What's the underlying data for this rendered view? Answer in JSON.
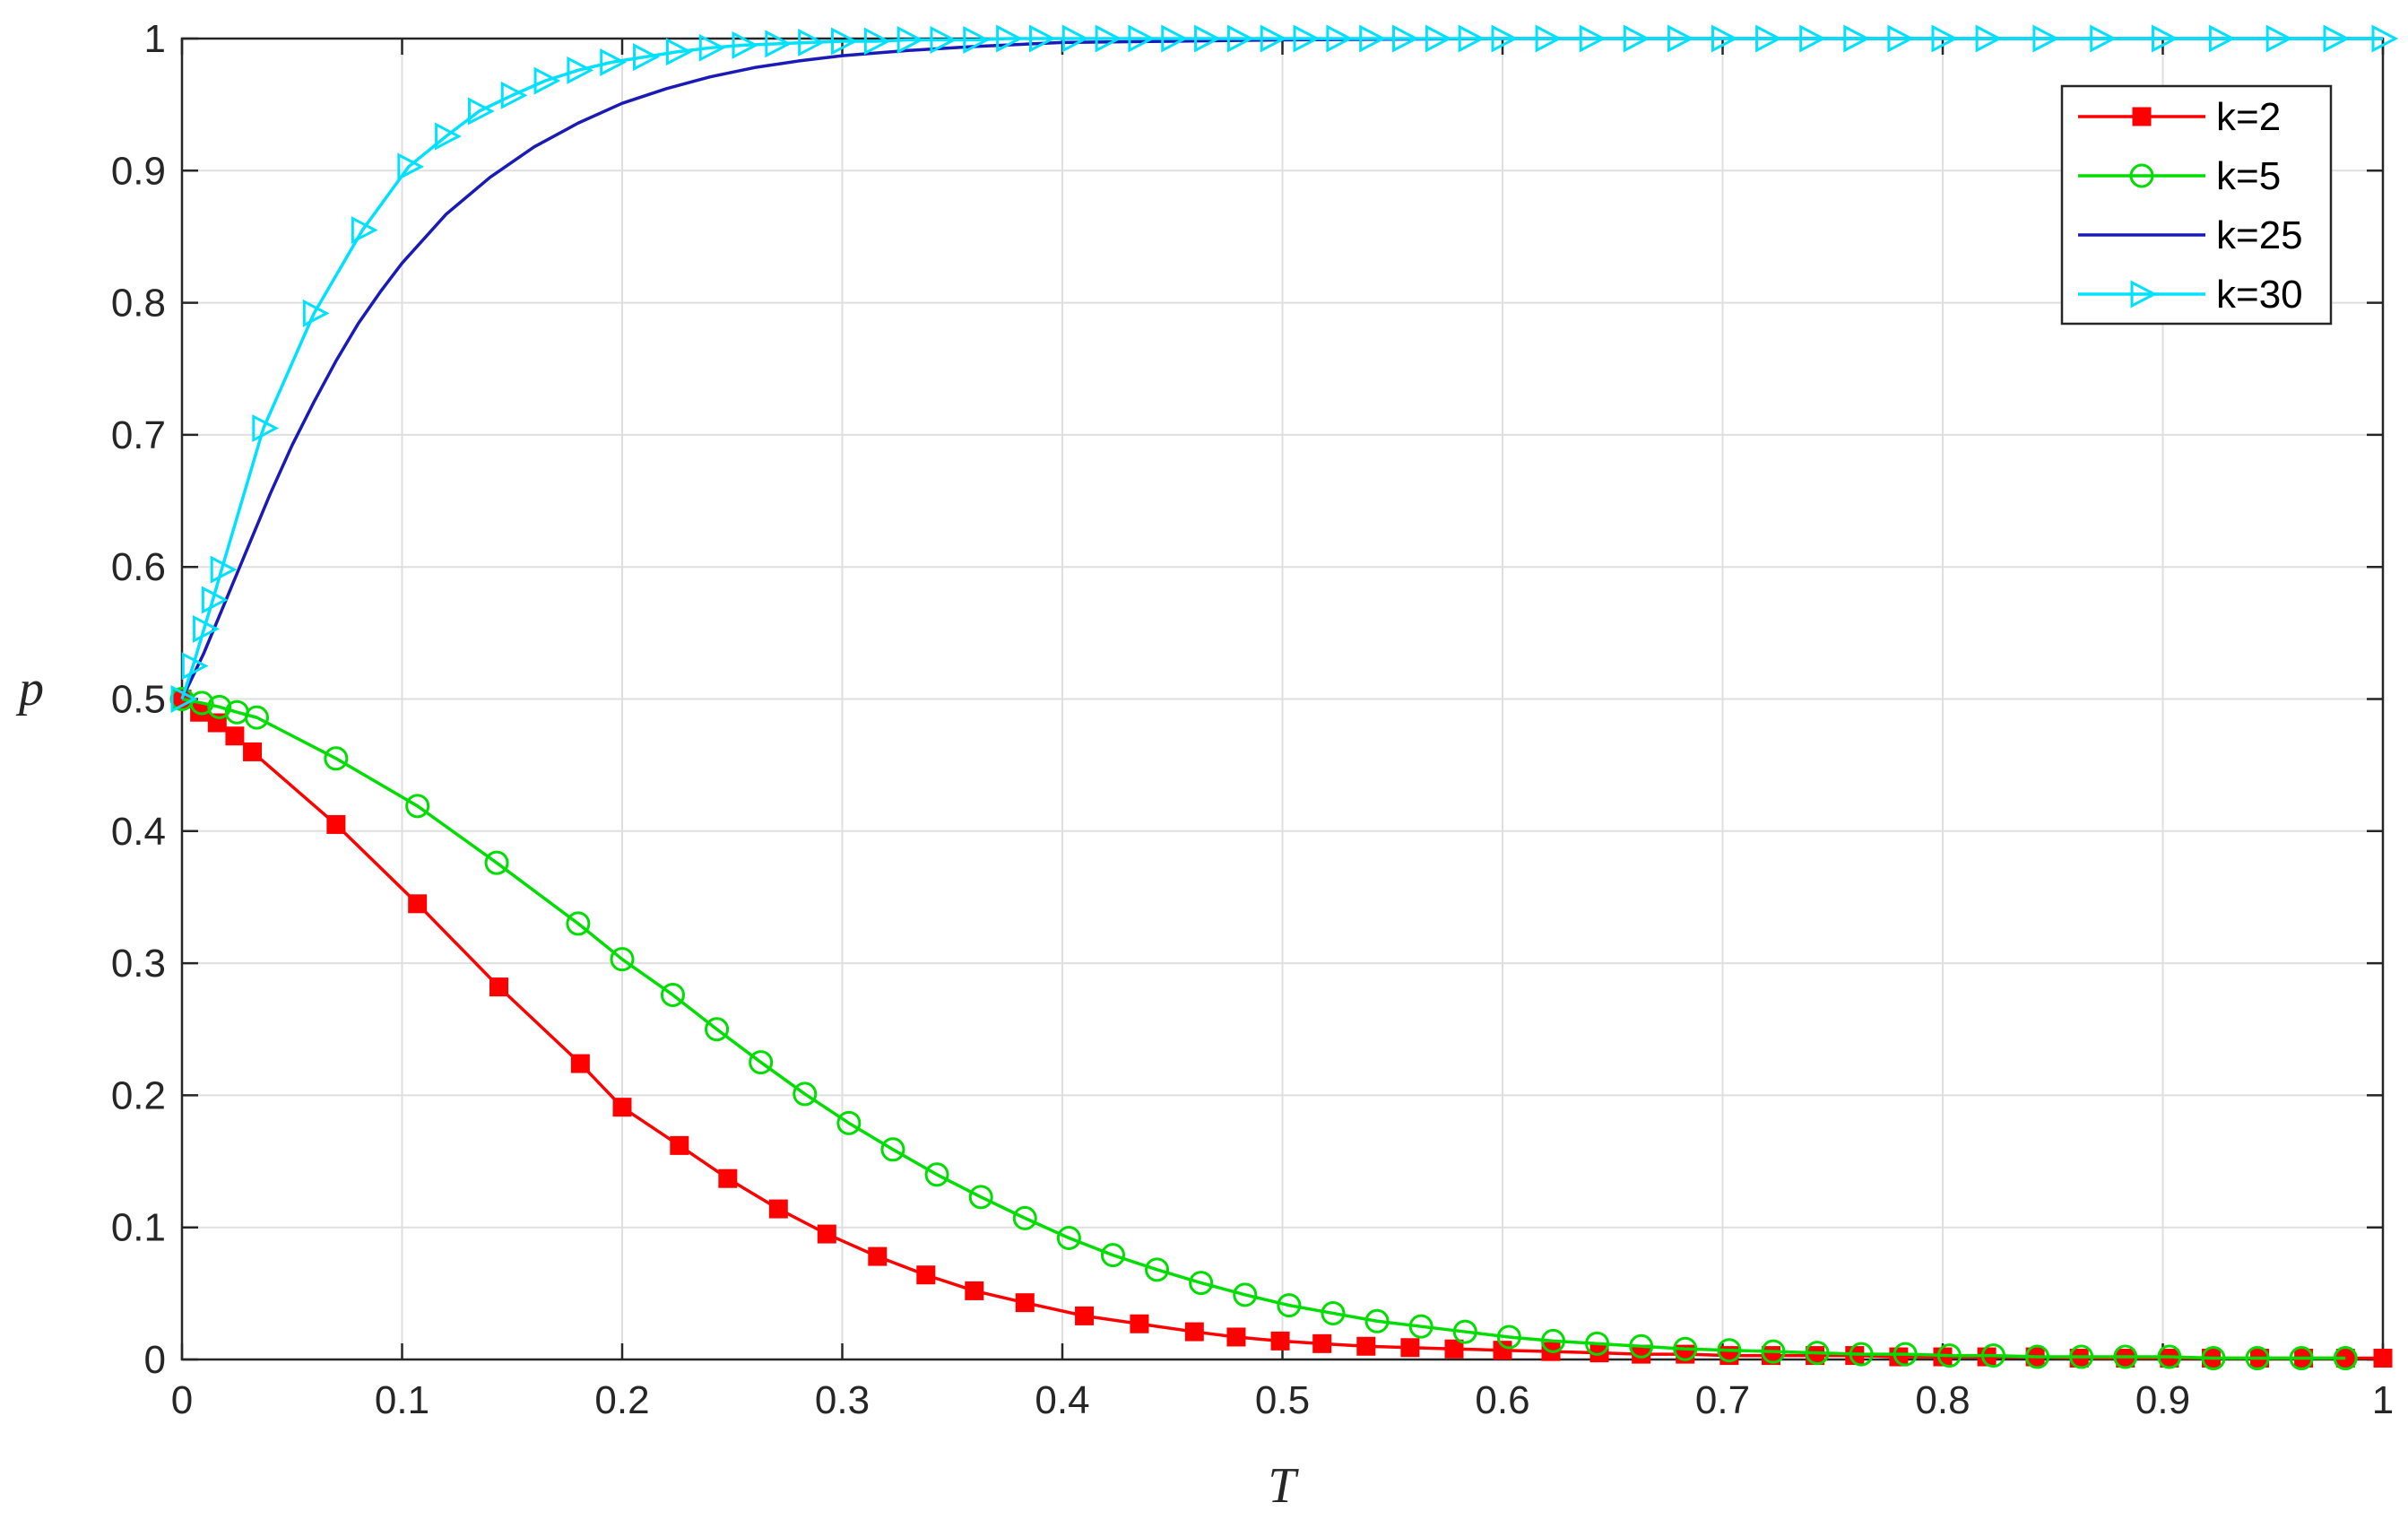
{
  "chart_data": {
    "type": "line",
    "title": "",
    "xlabel": "T",
    "ylabel": "p",
    "xlim": [
      0,
      1
    ],
    "ylim": [
      0,
      1
    ],
    "xticks": [
      "0",
      "0.1",
      "0.2",
      "0.3",
      "0.4",
      "0.5",
      "0.6",
      "0.7",
      "0.8",
      "0.9",
      "1"
    ],
    "yticks": [
      "0",
      "0.1",
      "0.2",
      "0.3",
      "0.4",
      "0.5",
      "0.6",
      "0.7",
      "0.8",
      "0.9",
      "1"
    ],
    "grid": true,
    "legend_position": "top-right",
    "series": [
      {
        "name": "k=2",
        "color": "#ff0000",
        "marker": "filled-square",
        "x": [
          0,
          0.008,
          0.016,
          0.024,
          0.032,
          0.07,
          0.107,
          0.144,
          0.181,
          0.2,
          0.226,
          0.248,
          0.271,
          0.293,
          0.316,
          0.338,
          0.36,
          0.383,
          0.41,
          0.435,
          0.46,
          0.479,
          0.499,
          0.518,
          0.538,
          0.558,
          0.578,
          0.6,
          0.622,
          0.644,
          0.663,
          0.683,
          0.703,
          0.722,
          0.742,
          0.76,
          0.78,
          0.8,
          0.82,
          0.842,
          0.862,
          0.883,
          0.903,
          0.922,
          0.944,
          0.964,
          0.983,
          1
        ],
        "y": [
          0.5,
          0.49,
          0.482,
          0.472,
          0.46,
          0.405,
          0.345,
          0.282,
          0.224,
          0.191,
          0.162,
          0.137,
          0.114,
          0.095,
          0.078,
          0.064,
          0.052,
          0.043,
          0.033,
          0.027,
          0.021,
          0.017,
          0.014,
          0.012,
          0.01,
          0.009,
          0.008,
          0.007,
          0.006,
          0.005,
          0.004,
          0.004,
          0.003,
          0.003,
          0.003,
          0.003,
          0.002,
          0.002,
          0.002,
          0.002,
          0.001,
          0.001,
          0.001,
          0.001,
          0.001,
          0.001,
          0.001,
          0.001
        ]
      },
      {
        "name": "k=5",
        "color": "#00dd00",
        "marker": "open-circle",
        "x": [
          0,
          0.009,
          0.017,
          0.025,
          0.034,
          0.07,
          0.107,
          0.143,
          0.18,
          0.2,
          0.223,
          0.243,
          0.263,
          0.283,
          0.303,
          0.323,
          0.343,
          0.363,
          0.383,
          0.403,
          0.423,
          0.443,
          0.463,
          0.483,
          0.503,
          0.523,
          0.543,
          0.563,
          0.583,
          0.603,
          0.623,
          0.643,
          0.663,
          0.683,
          0.703,
          0.723,
          0.743,
          0.763,
          0.783,
          0.803,
          0.823,
          0.843,
          0.863,
          0.883,
          0.903,
          0.923,
          0.943,
          0.963,
          0.983
        ],
        "y": [
          0.5,
          0.497,
          0.494,
          0.49,
          0.486,
          0.455,
          0.419,
          0.376,
          0.33,
          0.303,
          0.276,
          0.25,
          0.225,
          0.201,
          0.179,
          0.159,
          0.14,
          0.123,
          0.107,
          0.092,
          0.079,
          0.068,
          0.058,
          0.049,
          0.041,
          0.035,
          0.029,
          0.025,
          0.021,
          0.017,
          0.014,
          0.012,
          0.01,
          0.008,
          0.007,
          0.006,
          0.005,
          0.004,
          0.004,
          0.003,
          0.003,
          0.002,
          0.002,
          0.002,
          0.002,
          0.001,
          0.001,
          0.001,
          0.001
        ]
      },
      {
        "name": "k=25",
        "color": "#1a1ab8",
        "marker": "none",
        "x": [
          0,
          0.01,
          0.02,
          0.03,
          0.04,
          0.05,
          0.06,
          0.07,
          0.08,
          0.09,
          0.1,
          0.12,
          0.14,
          0.16,
          0.18,
          0.2,
          0.22,
          0.24,
          0.26,
          0.28,
          0.3,
          0.33,
          0.36,
          0.4,
          0.45,
          0.5,
          0.6,
          0.7,
          0.8,
          0.9,
          1
        ],
        "y": [
          0.5,
          0.535,
          0.575,
          0.615,
          0.655,
          0.692,
          0.725,
          0.756,
          0.784,
          0.808,
          0.83,
          0.867,
          0.895,
          0.918,
          0.936,
          0.951,
          0.962,
          0.971,
          0.978,
          0.983,
          0.987,
          0.991,
          0.994,
          0.997,
          0.998,
          0.999,
          1,
          1,
          1,
          1,
          1
        ]
      },
      {
        "name": "k=30",
        "color": "#00e0ff",
        "marker": "open-triangle-right",
        "x": [
          0,
          0.005,
          0.01,
          0.014,
          0.018,
          0.037,
          0.06,
          0.082,
          0.103,
          0.12,
          0.135,
          0.15,
          0.165,
          0.18,
          0.195,
          0.21,
          0.225,
          0.24,
          0.255,
          0.27,
          0.285,
          0.3,
          0.315,
          0.33,
          0.345,
          0.36,
          0.375,
          0.39,
          0.405,
          0.42,
          0.435,
          0.45,
          0.465,
          0.48,
          0.495,
          0.51,
          0.525,
          0.54,
          0.555,
          0.57,
          0.585,
          0.6,
          0.62,
          0.64,
          0.66,
          0.68,
          0.7,
          0.72,
          0.74,
          0.76,
          0.78,
          0.8,
          0.82,
          0.846,
          0.872,
          0.9,
          0.926,
          0.952,
          0.978,
          1
        ],
        "y": [
          0.5,
          0.525,
          0.553,
          0.575,
          0.598,
          0.705,
          0.792,
          0.855,
          0.903,
          0.926,
          0.945,
          0.957,
          0.968,
          0.976,
          0.982,
          0.986,
          0.99,
          0.993,
          0.995,
          0.996,
          0.997,
          0.998,
          0.998,
          0.999,
          0.999,
          0.999,
          1,
          1,
          1,
          1,
          1,
          1,
          1,
          1,
          1,
          1,
          1,
          1,
          1,
          1,
          1,
          1,
          1,
          1,
          1,
          1,
          1,
          1,
          1,
          1,
          1,
          1,
          1,
          1,
          1,
          1,
          1,
          1,
          1,
          1
        ]
      }
    ]
  }
}
